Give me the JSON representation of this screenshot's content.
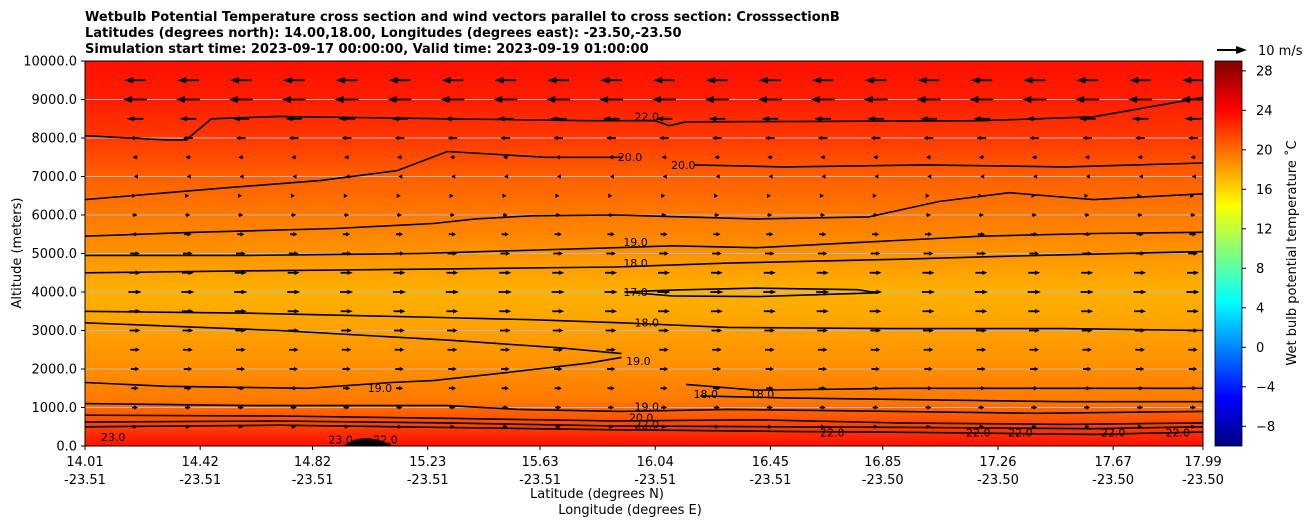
{
  "chart_data": {
    "type": "heatmap",
    "title_lines": [
      "Wetbulb Potential Temperature cross section and wind vectors parallel to cross section: CrosssectionB",
      "Latitudes (degrees north): 14.00,18.00, Longitudes (degrees east): -23.50,-23.50",
      "Simulation start time: 2023-09-17 00:00:00, Valid time: 2023-09-19 01:00:00"
    ],
    "xlabel_lines": [
      "Latitude (degrees N)",
      "Longitude (degrees E)"
    ],
    "ylabel": "Altitude (meters)",
    "colorbar_label": "Wet bulb potential temperature $^\\circ$C",
    "colorbar_label_text": "Wet bulb potential temperature ˚C",
    "colorbar_range": [
      -10,
      29
    ],
    "colorbar_ticks": [
      -8,
      -4,
      0,
      4,
      8,
      12,
      16,
      20,
      24,
      28
    ],
    "colormap": "jet",
    "quiver_key": "10 m/s",
    "x_range": [
      14.01,
      17.99
    ],
    "x_ticks": [
      {
        "lat": "14.01",
        "lon": "-23.51",
        "x": 14.01
      },
      {
        "lat": "14.42",
        "lon": "-23.51",
        "x": 14.42
      },
      {
        "lat": "14.82",
        "lon": "-23.51",
        "x": 14.82
      },
      {
        "lat": "15.23",
        "lon": "-23.51",
        "x": 15.23
      },
      {
        "lat": "15.63",
        "lon": "-23.51",
        "x": 15.63
      },
      {
        "lat": "16.04",
        "lon": "-23.51",
        "x": 16.04
      },
      {
        "lat": "16.45",
        "lon": "-23.51",
        "x": 16.45
      },
      {
        "lat": "16.85",
        "lon": "-23.50",
        "x": 16.85
      },
      {
        "lat": "17.26",
        "lon": "-23.50",
        "x": 17.26
      },
      {
        "lat": "17.67",
        "lon": "-23.50",
        "x": 17.67
      },
      {
        "lat": "17.99",
        "lon": "-23.50",
        "x": 17.99
      }
    ],
    "ylim": [
      0,
      10000
    ],
    "y_ticks": [
      "0.0",
      "1000.0",
      "2000.0",
      "3000.0",
      "4000.0",
      "5000.0",
      "6000.0",
      "7000.0",
      "8000.0",
      "9000.0",
      "10000.0"
    ],
    "grid": "horizontal",
    "temperature_bands": [
      {
        "alt": 0,
        "temp": 23.5
      },
      {
        "alt": 300,
        "temp": 22.5
      },
      {
        "alt": 700,
        "temp": 21.0
      },
      {
        "alt": 1200,
        "temp": 19.5
      },
      {
        "alt": 2000,
        "temp": 18.7
      },
      {
        "alt": 3000,
        "temp": 18.0
      },
      {
        "alt": 4000,
        "temp": 17.3
      },
      {
        "alt": 5000,
        "temp": 18.5
      },
      {
        "alt": 6000,
        "temp": 19.5
      },
      {
        "alt": 7000,
        "temp": 20.5
      },
      {
        "alt": 8000,
        "temp": 22.0
      },
      {
        "alt": 9000,
        "temp": 23.0
      },
      {
        "alt": 10000,
        "temp": 23.5
      }
    ],
    "contour_labels": [
      {
        "text": "23.0",
        "x": 14.11,
        "alt": 130
      },
      {
        "text": "23.0",
        "x": 14.92,
        "alt": 60
      },
      {
        "text": "22.0",
        "x": 15.08,
        "alt": 60
      },
      {
        "text": "19.0",
        "x": 15.06,
        "alt": 1400
      },
      {
        "text": "22.0",
        "x": 16.01,
        "alt": 8450
      },
      {
        "text": "20.0",
        "x": 15.95,
        "alt": 7400
      },
      {
        "text": "20.0",
        "x": 16.14,
        "alt": 7200
      },
      {
        "text": "19.0",
        "x": 15.97,
        "alt": 5200
      },
      {
        "text": "18.0",
        "x": 15.97,
        "alt": 4650
      },
      {
        "text": "17.0",
        "x": 15.97,
        "alt": 3900
      },
      {
        "text": "18.0",
        "x": 16.01,
        "alt": 3100
      },
      {
        "text": "19.0",
        "x": 15.98,
        "alt": 2100
      },
      {
        "text": "19.0",
        "x": 16.01,
        "alt": 920
      },
      {
        "text": "20.0",
        "x": 15.99,
        "alt": 640
      },
      {
        "text": "22.0",
        "x": 16.01,
        "alt": 450
      },
      {
        "text": "18.0",
        "x": 16.22,
        "alt": 1250
      },
      {
        "text": "18.0",
        "x": 16.42,
        "alt": 1250
      },
      {
        "text": "22.0",
        "x": 16.67,
        "alt": 250
      },
      {
        "text": "22.0",
        "x": 17.19,
        "alt": 250
      },
      {
        "text": "22.0",
        "x": 17.34,
        "alt": 250
      },
      {
        "text": "22.0",
        "x": 17.67,
        "alt": 250
      },
      {
        "text": "22.0",
        "x": 17.9,
        "alt": 250
      }
    ],
    "contours": [
      {
        "level": 22.0,
        "points": [
          [
            14.01,
            8060
          ],
          [
            14.3,
            7950
          ],
          [
            14.37,
            7950
          ],
          [
            14.46,
            8500
          ],
          [
            14.7,
            8560
          ],
          [
            15.3,
            8500
          ],
          [
            15.8,
            8450
          ],
          [
            16.04,
            8450
          ],
          [
            16.09,
            8320
          ],
          [
            16.15,
            8420
          ],
          [
            16.6,
            8430
          ],
          [
            17.2,
            8450
          ],
          [
            17.6,
            8550
          ],
          [
            17.99,
            9050
          ]
        ]
      },
      {
        "level": 20.0,
        "points": [
          [
            14.01,
            6400
          ],
          [
            14.5,
            6700
          ],
          [
            14.85,
            6900
          ],
          [
            15.12,
            7150
          ],
          [
            15.3,
            7650
          ],
          [
            15.65,
            7500
          ],
          [
            15.92,
            7500
          ]
        ]
      },
      {
        "level": 20.0,
        "points": [
          [
            16.18,
            7300
          ],
          [
            16.5,
            7250
          ],
          [
            17.0,
            7300
          ],
          [
            17.5,
            7250
          ],
          [
            17.99,
            7350
          ]
        ]
      },
      {
        "level": 19.5,
        "points": [
          [
            14.01,
            5450
          ],
          [
            14.4,
            5550
          ],
          [
            14.9,
            5650
          ],
          [
            15.25,
            5780
          ],
          [
            15.4,
            5900
          ],
          [
            15.6,
            5980
          ],
          [
            15.9,
            6000
          ],
          [
            16.4,
            5900
          ],
          [
            16.8,
            5950
          ],
          [
            17.05,
            6350
          ],
          [
            17.3,
            6580
          ],
          [
            17.6,
            6400
          ],
          [
            17.99,
            6550
          ]
        ]
      },
      {
        "level": 19.0,
        "points": [
          [
            14.01,
            4950
          ],
          [
            14.6,
            4950
          ],
          [
            15.2,
            5000
          ],
          [
            15.9,
            5150
          ],
          [
            16.1,
            5200
          ],
          [
            16.4,
            5150
          ],
          [
            16.8,
            5300
          ],
          [
            17.2,
            5450
          ],
          [
            17.6,
            5520
          ],
          [
            17.99,
            5550
          ]
        ]
      },
      {
        "level": 18.0,
        "points": [
          [
            14.01,
            4500
          ],
          [
            14.6,
            4550
          ],
          [
            15.3,
            4600
          ],
          [
            15.9,
            4650
          ],
          [
            16.3,
            4750
          ],
          [
            16.9,
            4850
          ],
          [
            17.4,
            4950
          ],
          [
            17.99,
            5050
          ]
        ]
      },
      {
        "level": 17.0,
        "points": [
          [
            15.93,
            4000
          ],
          [
            16.1,
            4050
          ],
          [
            16.4,
            4100
          ],
          [
            16.76,
            4060
          ],
          [
            16.83,
            3980
          ],
          [
            16.4,
            3880
          ],
          [
            16.1,
            3900
          ],
          [
            15.93,
            4000
          ]
        ]
      },
      {
        "level": 18.0,
        "points": [
          [
            14.01,
            3500
          ],
          [
            14.6,
            3450
          ],
          [
            15.2,
            3350
          ],
          [
            15.6,
            3280
          ],
          [
            15.92,
            3200
          ],
          [
            16.3,
            3080
          ],
          [
            16.9,
            3050
          ],
          [
            17.5,
            3050
          ],
          [
            17.99,
            3000
          ]
        ]
      },
      {
        "level": 18.5,
        "points": [
          [
            14.01,
            3200
          ],
          [
            14.7,
            3000
          ],
          [
            15.3,
            2750
          ],
          [
            15.7,
            2550
          ],
          [
            15.92,
            2400
          ]
        ]
      },
      {
        "level": 19.0,
        "points": [
          [
            14.01,
            1650
          ],
          [
            14.3,
            1550
          ],
          [
            14.8,
            1500
          ],
          [
            15.1,
            1650
          ],
          [
            15.25,
            1700
          ],
          [
            15.5,
            1900
          ],
          [
            15.8,
            2150
          ],
          [
            15.92,
            2300
          ]
        ]
      },
      {
        "level": 19.0,
        "points": [
          [
            16.15,
            1600
          ],
          [
            16.4,
            1450
          ],
          [
            16.9,
            1500
          ],
          [
            17.4,
            1500
          ],
          [
            17.99,
            1500
          ]
        ]
      },
      {
        "level": 18.8,
        "points": [
          [
            16.2,
            1300
          ],
          [
            16.5,
            1250
          ],
          [
            17.0,
            1200
          ],
          [
            17.5,
            1150
          ],
          [
            17.99,
            1150
          ]
        ]
      },
      {
        "level": 19.0,
        "points": [
          [
            14.01,
            1100
          ],
          [
            14.6,
            1050
          ],
          [
            15.3,
            1050
          ],
          [
            15.55,
            950
          ],
          [
            15.92,
            900
          ],
          [
            16.3,
            950
          ],
          [
            16.9,
            900
          ],
          [
            17.4,
            850
          ],
          [
            17.99,
            900
          ]
        ]
      },
      {
        "level": 20.0,
        "points": [
          [
            14.01,
            800
          ],
          [
            14.7,
            780
          ],
          [
            15.3,
            720
          ],
          [
            15.9,
            650
          ],
          [
            16.4,
            680
          ],
          [
            16.9,
            600
          ],
          [
            17.5,
            560
          ],
          [
            17.99,
            600
          ]
        ]
      },
      {
        "level": 21.0,
        "points": [
          [
            14.01,
            620
          ],
          [
            14.7,
            650
          ],
          [
            15.3,
            600
          ],
          [
            15.9,
            520
          ],
          [
            16.5,
            500
          ],
          [
            17.0,
            480
          ],
          [
            17.6,
            450
          ],
          [
            17.99,
            500
          ]
        ]
      },
      {
        "level": 22.0,
        "points": [
          [
            14.01,
            500
          ],
          [
            14.7,
            540
          ],
          [
            15.3,
            480
          ],
          [
            15.9,
            420
          ],
          [
            16.5,
            380
          ],
          [
            17.0,
            350
          ],
          [
            17.6,
            300
          ],
          [
            17.99,
            360
          ]
        ]
      }
    ],
    "terrain_bump": {
      "x_start": 14.93,
      "x_peak": 15.0,
      "x_end": 15.11,
      "peak_alt": 200
    },
    "wind_rows": [
      {
        "alt": 9500,
        "u": -9
      },
      {
        "alt": 9000,
        "u": -10
      },
      {
        "alt": 8500,
        "u": -7
      },
      {
        "alt": 8000,
        "u": -4
      },
      {
        "alt": 7500,
        "u": -2
      },
      {
        "alt": 7000,
        "u": -1
      },
      {
        "alt": 6500,
        "u": 1
      },
      {
        "alt": 6000,
        "u": 2
      },
      {
        "alt": 5500,
        "u": 3
      },
      {
        "alt": 5000,
        "u": 4
      },
      {
        "alt": 4500,
        "u": 5
      },
      {
        "alt": 4000,
        "u": 5.5
      },
      {
        "alt": 3500,
        "u": 5
      },
      {
        "alt": 3000,
        "u": 4.5
      },
      {
        "alt": 2500,
        "u": 4
      },
      {
        "alt": 2000,
        "u": 3.5
      },
      {
        "alt": 1500,
        "u": 3
      },
      {
        "alt": 1000,
        "u": 2.5
      },
      {
        "alt": 500,
        "u": 2
      }
    ],
    "wind_columns": 21
  }
}
